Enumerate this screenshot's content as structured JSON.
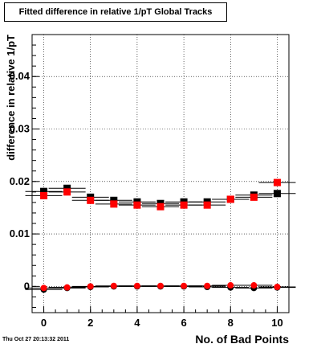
{
  "chart_data": {
    "type": "scatter",
    "title": "Fitted difference in relative 1/pT  Global Tracks",
    "xlabel": "No. of Bad Points",
    "ylabel": "difference in relative 1/pT",
    "xlim": [
      -0.5,
      10.5
    ],
    "ylim": [
      -0.005,
      0.048
    ],
    "x_ticks": [
      "0",
      "2",
      "4",
      "6",
      "8",
      "10"
    ],
    "y_ticks": [
      "0",
      "0.01",
      "0.02",
      "0.03",
      "0.04"
    ],
    "grid": true,
    "series": [
      {
        "marker": "square",
        "color": "#000000",
        "x": [
          0,
          1,
          2,
          3,
          4,
          5,
          6,
          7,
          8,
          9,
          10
        ],
        "y": [
          0.0181,
          0.0187,
          0.017,
          0.0164,
          0.0161,
          0.0158,
          0.0161,
          0.0161,
          0.0166,
          0.0174,
          0.0177
        ]
      },
      {
        "marker": "square",
        "color": "#ff0000",
        "x": [
          0,
          1,
          2,
          3,
          4,
          5,
          6,
          7,
          8,
          9,
          10
        ],
        "y": [
          0.0173,
          0.018,
          0.0164,
          0.0157,
          0.0155,
          0.0152,
          0.0155,
          0.0155,
          0.0166,
          0.017,
          0.0198
        ]
      },
      {
        "marker": "circle",
        "color": "#000000",
        "x": [
          0,
          1,
          2,
          3,
          4,
          5,
          6,
          7,
          8,
          9,
          10
        ],
        "y": [
          -0.0006,
          -0.0003,
          -0.0001,
          0.0,
          0.0,
          0.0,
          0.0,
          -0.0001,
          -0.0002,
          -0.0003,
          -0.0002
        ]
      },
      {
        "marker": "circle",
        "color": "#ff0000",
        "x": [
          0,
          1,
          2,
          3,
          4,
          5,
          6,
          7,
          8,
          9,
          10
        ],
        "y": [
          -0.0003,
          -0.0002,
          0.0,
          0.0001,
          0.0001,
          0.0001,
          0.0001,
          0.0001,
          0.0002,
          0.0002,
          -0.0001
        ]
      }
    ]
  },
  "footer": "Thu Oct 27 20:13:32 2011"
}
